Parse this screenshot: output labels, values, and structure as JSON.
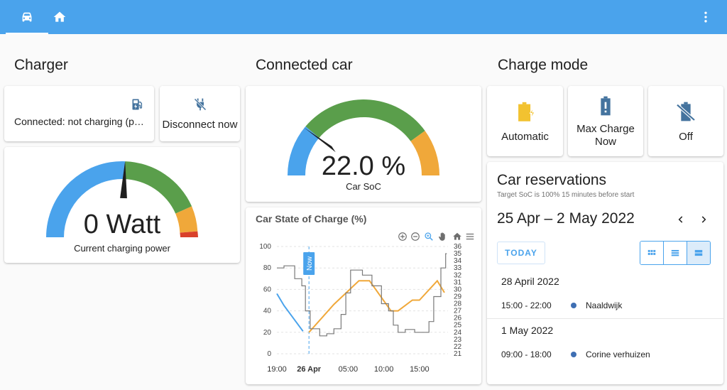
{
  "topbar": {
    "tabs": [
      {
        "icon": "car-icon"
      },
      {
        "icon": "home-icon"
      }
    ],
    "menu_icon": "dots-vertical-icon",
    "color": "#4aa3ec"
  },
  "charger": {
    "title": "Charger",
    "status_text": "Connected: not charging (paused)",
    "status_icon": "ev-station-icon",
    "disconnect_label": "Disconnect now",
    "disconnect_icon": "power-plug-off-icon",
    "gauge": {
      "value": 0,
      "display": "0 Watt",
      "label": "Current charging power"
    }
  },
  "car": {
    "title": "Connected car",
    "gauge": {
      "value": 22.0,
      "display": "22.0 %",
      "label": "Car SoC"
    }
  },
  "chart": {
    "title": "Car State of Charge (%)",
    "now_label": "Now",
    "toolbar": [
      "zoom-in-icon",
      "zoom-out-icon",
      "zoom-select-icon",
      "pan-icon",
      "reset-home-icon",
      "menu-icon"
    ]
  },
  "chart_data": {
    "type": "line",
    "title": "Car State of Charge (%)",
    "x_ticks": [
      "19:00",
      "26 Apr",
      "05:00",
      "10:00",
      "15:00"
    ],
    "x_range": [
      "25 Apr 19:00",
      "26 Apr 19:00"
    ],
    "y_left": {
      "ticks": [
        0,
        20,
        40,
        60,
        80,
        100
      ],
      "range": [
        0,
        100
      ]
    },
    "y_right": {
      "ticks": [
        21,
        22,
        23,
        24,
        25,
        26,
        27,
        28,
        29,
        30,
        31,
        32,
        33,
        34,
        35,
        36
      ],
      "range": [
        21,
        36
      ]
    },
    "now_marker": "25 Apr 23:30",
    "series": [
      {
        "axis": "left",
        "color": "#4aa3ec",
        "points": [
          [
            "25 Apr 19:00",
            56
          ],
          [
            "25 Apr 20:00",
            45
          ],
          [
            "25 Apr 22:40",
            21
          ]
        ]
      },
      {
        "axis": "left",
        "color": "#f0a83a",
        "points": [
          [
            "25 Apr 23:30",
            20
          ],
          [
            "26 Apr 03:00",
            46
          ],
          [
            "26 Apr 06:30",
            68
          ],
          [
            "26 Apr 08:00",
            68
          ],
          [
            "26 Apr 11:00",
            40
          ],
          [
            "26 Apr 12:00",
            40
          ],
          [
            "26 Apr 14:00",
            50
          ],
          [
            "26 Apr 15:00",
            50
          ],
          [
            "26 Apr 17:30",
            68
          ],
          [
            "26 Apr 18:30",
            57
          ]
        ]
      },
      {
        "axis": "right",
        "color": "#7a7a7a",
        "points": [
          [
            "25 Apr 19:00",
            33
          ],
          [
            "25 Apr 20:00",
            33
          ],
          [
            "25 Apr 20:00",
            33.3
          ],
          [
            "25 Apr 21:30",
            33.3
          ],
          [
            "25 Apr 21:30",
            31.5
          ],
          [
            "25 Apr 22:30",
            31.5
          ],
          [
            "25 Apr 22:30",
            30.5
          ],
          [
            "25 Apr 23:00",
            30.5
          ],
          [
            "25 Apr 23:00",
            27
          ],
          [
            "25 Apr 23:40",
            27
          ],
          [
            "25 Apr 23:40",
            24.5
          ],
          [
            "26 Apr 01:00",
            24.5
          ],
          [
            "26 Apr 01:00",
            23.5
          ],
          [
            "26 Apr 02:00",
            23.5
          ],
          [
            "26 Apr 02:00",
            23.8
          ],
          [
            "26 Apr 03:00",
            23.8
          ],
          [
            "26 Apr 03:00",
            24.5
          ],
          [
            "26 Apr 04:00",
            24.5
          ],
          [
            "26 Apr 04:00",
            26.5
          ],
          [
            "26 Apr 04:40",
            26.5
          ],
          [
            "26 Apr 04:40",
            29.5
          ],
          [
            "26 Apr 05:20",
            29.5
          ],
          [
            "26 Apr 05:20",
            32.7
          ],
          [
            "26 Apr 07:00",
            32.7
          ],
          [
            "26 Apr 07:00",
            32
          ],
          [
            "26 Apr 08:20",
            32
          ],
          [
            "26 Apr 08:20",
            30.5
          ],
          [
            "26 Apr 09:40",
            30.5
          ],
          [
            "26 Apr 09:40",
            28
          ],
          [
            "26 Apr 10:40",
            28
          ],
          [
            "26 Apr 10:40",
            27
          ],
          [
            "26 Apr 11:20",
            27
          ],
          [
            "26 Apr 11:20",
            25
          ],
          [
            "26 Apr 12:00",
            25
          ],
          [
            "26 Apr 12:00",
            24
          ],
          [
            "26 Apr 13:00",
            24
          ],
          [
            "26 Apr 13:00",
            24.4
          ],
          [
            "26 Apr 14:20",
            24.4
          ],
          [
            "26 Apr 14:20",
            24
          ],
          [
            "26 Apr 16:20",
            24
          ],
          [
            "26 Apr 16:20",
            25.5
          ],
          [
            "26 Apr 17:00",
            25.5
          ],
          [
            "26 Apr 17:00",
            29
          ],
          [
            "26 Apr 18:00",
            29
          ],
          [
            "26 Apr 18:00",
            33
          ],
          [
            "26 Apr 18:40",
            33
          ],
          [
            "26 Apr 18:40",
            35
          ],
          [
            "26 Apr 18:50",
            35
          ]
        ]
      }
    ]
  },
  "charge_mode": {
    "title": "Charge mode",
    "modes": [
      {
        "label": "Automatic",
        "icon": "battery-charging-icon",
        "color": "#f2c230"
      },
      {
        "label": "Max Charge Now",
        "icon": "battery-alert-icon",
        "color": "#44739e"
      },
      {
        "label": "Off",
        "icon": "battery-off-icon",
        "color": "#44739e"
      }
    ]
  },
  "reservations": {
    "title": "Car reservations",
    "subtitle": "Target SoC is 100% 15 minutes before start",
    "range": "25 Apr – 2 May 2022",
    "prev_icon": "chevron-left-icon",
    "next_icon": "chevron-right-icon",
    "today_label": "TODAY",
    "views": [
      "grid-view-icon",
      "week-list-icon",
      "day-list-icon"
    ],
    "days": [
      {
        "date": "28 April 2022",
        "events": [
          {
            "time": "15:00 - 22:00",
            "title": "Naaldwijk"
          }
        ]
      },
      {
        "date": "1 May 2022",
        "events": [
          {
            "time": "09:00 - 18:00",
            "title": "Corine verhuizen"
          }
        ]
      }
    ]
  },
  "colors": {
    "gauge_blue": "#4aa3ec",
    "gauge_green": "#5a9e4b",
    "gauge_orange": "#f0a83a",
    "gauge_red": "#d9412b",
    "accent": "#4aa3ec"
  }
}
